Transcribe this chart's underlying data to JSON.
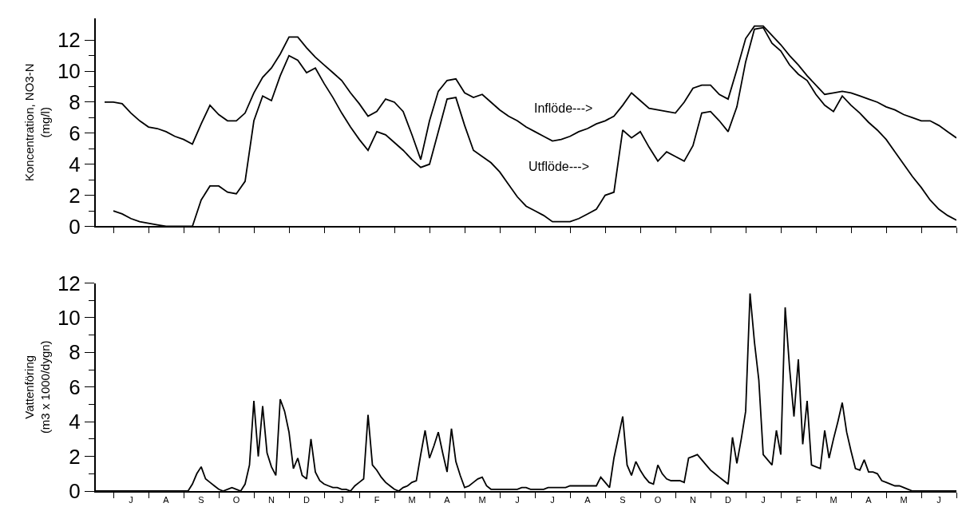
{
  "chart_data": [
    {
      "type": "line",
      "ylabel": "Koncentration, NO3-N\n(mg/l)",
      "ylim": [
        0,
        13.4
      ],
      "tick_labels": "y",
      "line_style": "solid",
      "categories": [
        null,
        null,
        null,
        null,
        null,
        null,
        null,
        null,
        null,
        null,
        null,
        null,
        null,
        null,
        null,
        null,
        null,
        null,
        null,
        null,
        null,
        null,
        null,
        null,
        null,
        null,
        null,
        null,
        null,
        null,
        null,
        null,
        null,
        null,
        null,
        null,
        null,
        null,
        null,
        null,
        null,
        null,
        null,
        null,
        null,
        null,
        null,
        null,
        null,
        null,
        null,
        null,
        null,
        null,
        null,
        null,
        null,
        null,
        null,
        null,
        null,
        null,
        null,
        null,
        null,
        null,
        null,
        null,
        null,
        null,
        null,
        null,
        null,
        null,
        null,
        null,
        null,
        null,
        null,
        null,
        null,
        null,
        null,
        null,
        null,
        null,
        null,
        null,
        null,
        null,
        null,
        null,
        null,
        null,
        null,
        null,
        null,
        null,
        null
      ],
      "yticks": [
        0,
        {
          "value": 1,
          "label": null
        },
        2,
        {
          "value": 3,
          "label": null
        },
        4,
        {
          "value": 5,
          "label": null
        },
        6,
        {
          "value": 7,
          "label": null
        },
        8,
        {
          "value": 9,
          "label": null
        },
        10,
        {
          "value": 11,
          "label": null
        },
        12
      ],
      "series": [
        {
          "color": "#000000",
          "values": [
            null,
            8.0,
            8.0,
            7.9,
            7.3,
            6.8,
            6.4,
            6.3,
            6.1,
            5.8,
            5.6,
            5.3,
            6.6,
            7.8,
            7.2,
            6.8,
            6.8,
            7.3,
            8.6,
            9.6,
            10.2,
            11.1,
            12.2,
            12.2,
            11.5,
            10.9,
            10.4,
            9.9,
            9.4,
            8.6,
            7.9,
            7.1,
            7.4,
            8.2,
            8.0,
            7.4,
            5.9,
            4.3,
            6.8,
            8.7,
            9.4,
            9.5,
            8.6,
            8.3,
            8.5,
            8.0,
            7.5,
            7.1,
            6.8,
            6.4,
            6.1,
            5.8,
            5.5,
            5.6,
            5.8,
            6.1,
            6.3,
            6.6,
            6.8,
            7.1,
            7.8,
            8.6,
            8.1,
            7.6,
            7.5,
            7.4,
            7.3,
            8.0,
            8.9,
            9.1,
            9.1,
            8.5,
            8.2,
            10.1,
            12.1,
            12.9,
            12.9,
            12.3,
            11.7,
            11.0,
            10.4,
            9.7,
            9.1,
            8.5,
            8.6,
            8.7,
            8.6,
            8.4,
            8.2,
            8.0,
            7.7,
            7.5,
            7.2,
            7.0,
            6.8,
            6.8,
            6.5,
            6.1,
            5.7
          ]
        },
        {
          "color": "#000000",
          "values": [
            null,
            null,
            1.0,
            0.8,
            0.5,
            0.3,
            0.2,
            0.1,
            0,
            0,
            0,
            0,
            1.7,
            2.6,
            2.6,
            2.2,
            2.1,
            2.9,
            6.8,
            8.4,
            8.1,
            9.7,
            11.0,
            10.7,
            9.9,
            10.2,
            9.2,
            8.3,
            7.3,
            6.4,
            5.6,
            4.9,
            6.1,
            5.9,
            5.4,
            4.9,
            4.3,
            3.8,
            4.0,
            6.1,
            8.2,
            8.3,
            6.5,
            4.9,
            4.5,
            4.1,
            3.5,
            2.7,
            1.9,
            1.3,
            1.0,
            0.7,
            0.3,
            0.3,
            0.3,
            0.5,
            0.8,
            1.1,
            2.0,
            2.2,
            6.2,
            5.7,
            6.1,
            5.1,
            4.2,
            4.8,
            4.5,
            4.2,
            5.2,
            7.3,
            7.4,
            6.8,
            6.1,
            7.7,
            10.6,
            12.7,
            12.8,
            11.8,
            11.3,
            10.4,
            9.8,
            9.4,
            8.5,
            7.8,
            7.4,
            8.4,
            7.8,
            7.3,
            6.7,
            6.2,
            5.6,
            4.8,
            4.0,
            3.2,
            2.5,
            1.7,
            1.1,
            0.7,
            0.4
          ]
        }
      ],
      "annotations": [
        "Inflöde--->",
        "Utflöde--->"
      ]
    },
    {
      "type": "line",
      "ylabel": "Vattenföring\n(m3 x 1000/dygn)",
      "ylim": [
        0,
        12
      ],
      "line_style": "solid",
      "categories": [
        null,
        null,
        null,
        null,
        null,
        null,
        null,
        null,
        "J",
        null,
        null,
        null,
        null,
        null,
        null,
        null,
        "A",
        null,
        null,
        null,
        null,
        null,
        null,
        null,
        "S",
        null,
        null,
        null,
        null,
        null,
        null,
        null,
        "O",
        null,
        null,
        null,
        null,
        null,
        null,
        null,
        "N",
        null,
        null,
        null,
        null,
        null,
        null,
        null,
        "D",
        null,
        null,
        null,
        null,
        null,
        null,
        null,
        "J",
        null,
        null,
        null,
        null,
        null,
        null,
        null,
        "F",
        null,
        null,
        null,
        null,
        null,
        null,
        null,
        "M",
        null,
        null,
        null,
        null,
        null,
        null,
        null,
        "A",
        null,
        null,
        null,
        null,
        null,
        null,
        null,
        "M",
        null,
        null,
        null,
        null,
        null,
        null,
        null,
        "J",
        null,
        null,
        null,
        null,
        null,
        null,
        null,
        "J",
        null,
        null,
        null,
        null,
        null,
        null,
        null,
        "A",
        null,
        null,
        null,
        null,
        null,
        null,
        null,
        "S",
        null,
        null,
        null,
        null,
        null,
        null,
        null,
        "O",
        null,
        null,
        null,
        null,
        null,
        null,
        null,
        "N",
        null,
        null,
        null,
        null,
        null,
        null,
        null,
        "D",
        null,
        null,
        null,
        null,
        null,
        null,
        null,
        "J",
        null,
        null,
        null,
        null,
        null,
        null,
        null,
        "F",
        null,
        null,
        null,
        null,
        null,
        null,
        null,
        "M",
        null,
        null,
        null,
        null,
        null,
        null,
        null,
        "A",
        null,
        null,
        null,
        null,
        null,
        null,
        null,
        "M",
        null,
        null,
        null,
        null,
        null,
        null,
        null,
        "J",
        null,
        null,
        null,
        null
      ],
      "yticks": [
        0,
        {
          "value": 1,
          "label": null
        },
        2,
        {
          "value": 3,
          "label": null
        },
        4,
        {
          "value": 5,
          "label": null
        },
        6,
        {
          "value": 7,
          "label": null
        },
        8,
        {
          "value": 9,
          "label": null
        },
        10,
        {
          "value": 11,
          "label": null
        },
        12
      ],
      "series": [
        {
          "color": "#000000",
          "values": [
            0,
            0,
            0,
            0,
            0,
            0,
            0,
            0,
            0,
            0,
            0,
            0,
            0,
            0,
            0,
            0,
            0,
            0,
            0,
            0,
            0,
            0,
            0.4,
            1.0,
            1.4,
            0.7,
            0.5,
            0.3,
            0.1,
            0,
            0.1,
            0.2,
            0.1,
            0,
            0.4,
            1.5,
            5.2,
            2.0,
            4.9,
            2.2,
            1.4,
            0.9,
            5.3,
            4.6,
            3.4,
            1.3,
            1.9,
            0.9,
            0.7,
            3.0,
            1.1,
            0.6,
            0.4,
            0.3,
            0.2,
            0.2,
            0.1,
            0.1,
            0,
            0.3,
            0.5,
            0.7,
            4.4,
            1.5,
            1.2,
            0.8,
            0.5,
            0.3,
            0.1,
            0,
            0.2,
            0.3,
            0.5,
            0.6,
            2.1,
            3.5,
            1.9,
            2.6,
            3.4,
            2.2,
            1.1,
            3.6,
            1.7,
            0.9,
            0.2,
            0.3,
            0.5,
            0.7,
            0.8,
            0.3,
            0.1,
            0.1,
            0.1,
            0.1,
            0.1,
            0.1,
            0.1,
            0.2,
            0.2,
            0.1,
            0.1,
            0.1,
            0.1,
            0.2,
            0.2,
            0.2,
            0.2,
            0.2,
            0.3,
            0.3,
            0.3,
            0.3,
            0.3,
            0.3,
            0.3,
            0.8,
            0.5,
            0.2,
            1.9,
            3.1,
            4.3,
            1.5,
            0.9,
            1.7,
            1.2,
            0.8,
            0.5,
            0.4,
            1.5,
            1.0,
            0.7,
            0.6,
            0.6,
            0.6,
            0.5,
            1.9,
            2.0,
            2.1,
            1.8,
            1.5,
            1.2,
            1.0,
            0.8,
            0.6,
            0.4,
            3.1,
            1.6,
            3.0,
            4.6,
            11.4,
            8.6,
            6.4,
            2.1,
            1.8,
            1.5,
            3.5,
            2.1,
            10.6,
            7.1,
            4.3,
            7.6,
            2.7,
            5.2,
            1.5,
            1.4,
            1.3,
            3.5,
            1.9,
            3.0,
            4.0,
            5.1,
            3.4,
            2.3,
            1.3,
            1.2,
            1.8,
            1.1,
            1.1,
            1.0,
            0.6,
            0.5,
            0.4,
            0.3,
            0.3,
            0.2,
            0.1,
            0,
            0,
            0,
            0,
            0,
            0,
            0,
            0,
            0,
            0,
            0
          ]
        }
      ]
    }
  ]
}
